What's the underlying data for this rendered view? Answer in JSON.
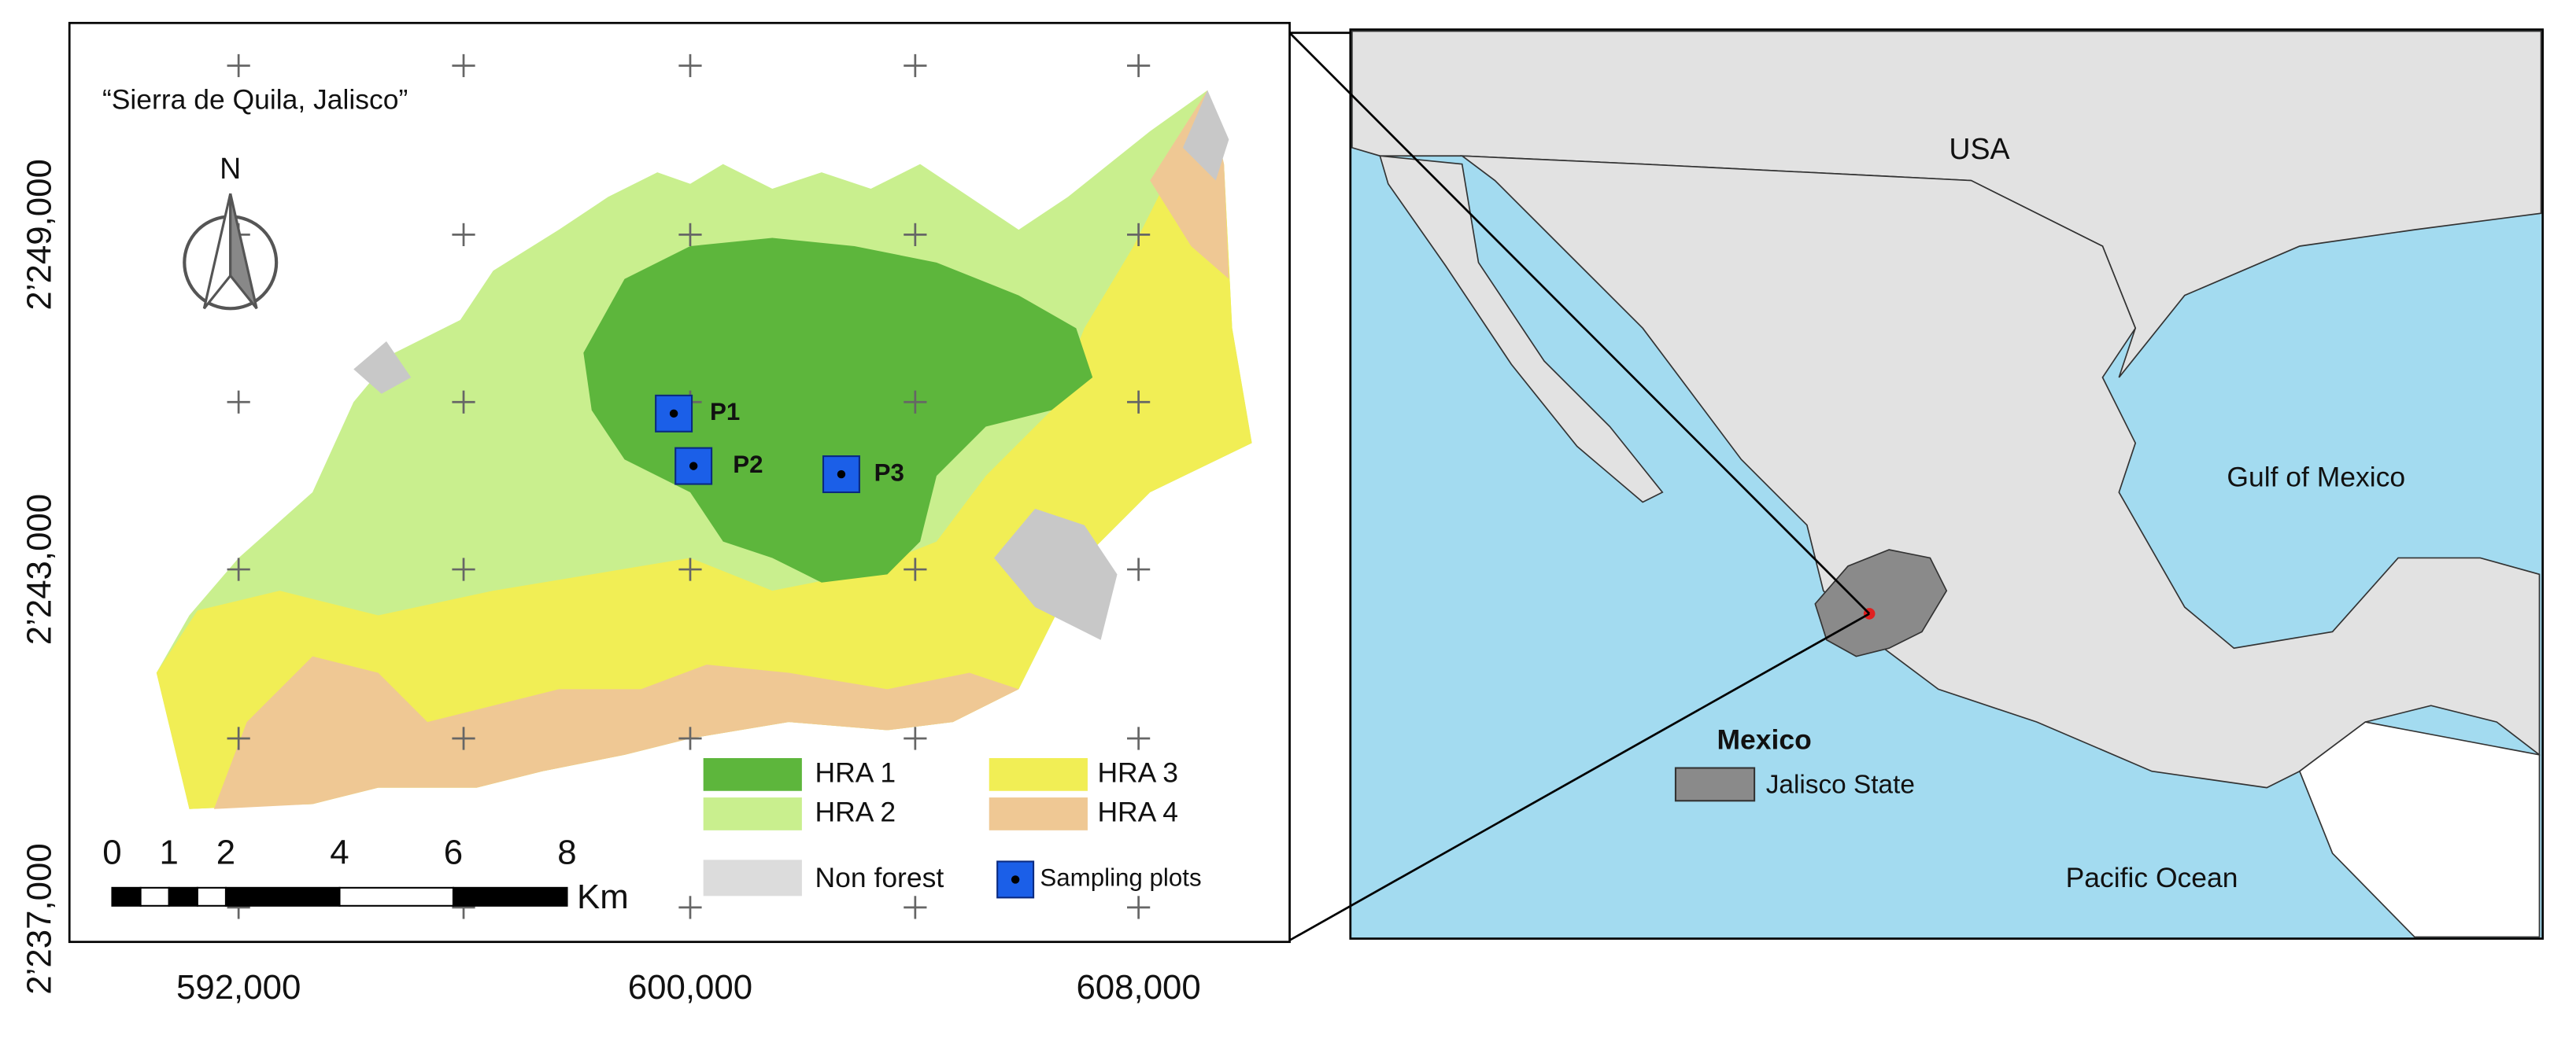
{
  "left_map": {
    "title": "“Sierra de Quila, Jalisco”",
    "north": "N",
    "x_labels": [
      "592,000",
      "600,000",
      "608,000"
    ],
    "y_labels": [
      "2’249,000",
      "2’243,000",
      "2’237,000"
    ],
    "plots": [
      "P1",
      "P2",
      "P3"
    ],
    "legend": [
      "HRA 1",
      "HRA 2",
      "Non forest",
      "HRA 3",
      "HRA 4",
      "Sampling plots"
    ],
    "scale": {
      "ticks": [
        0,
        1,
        2,
        4,
        6,
        8
      ],
      "unit": "Km"
    }
  },
  "right_map": {
    "labels": [
      "USA",
      "Gulf of Mexico",
      "Mexico",
      "Pacific Ocean"
    ],
    "legend": "Jalisco State"
  }
}
